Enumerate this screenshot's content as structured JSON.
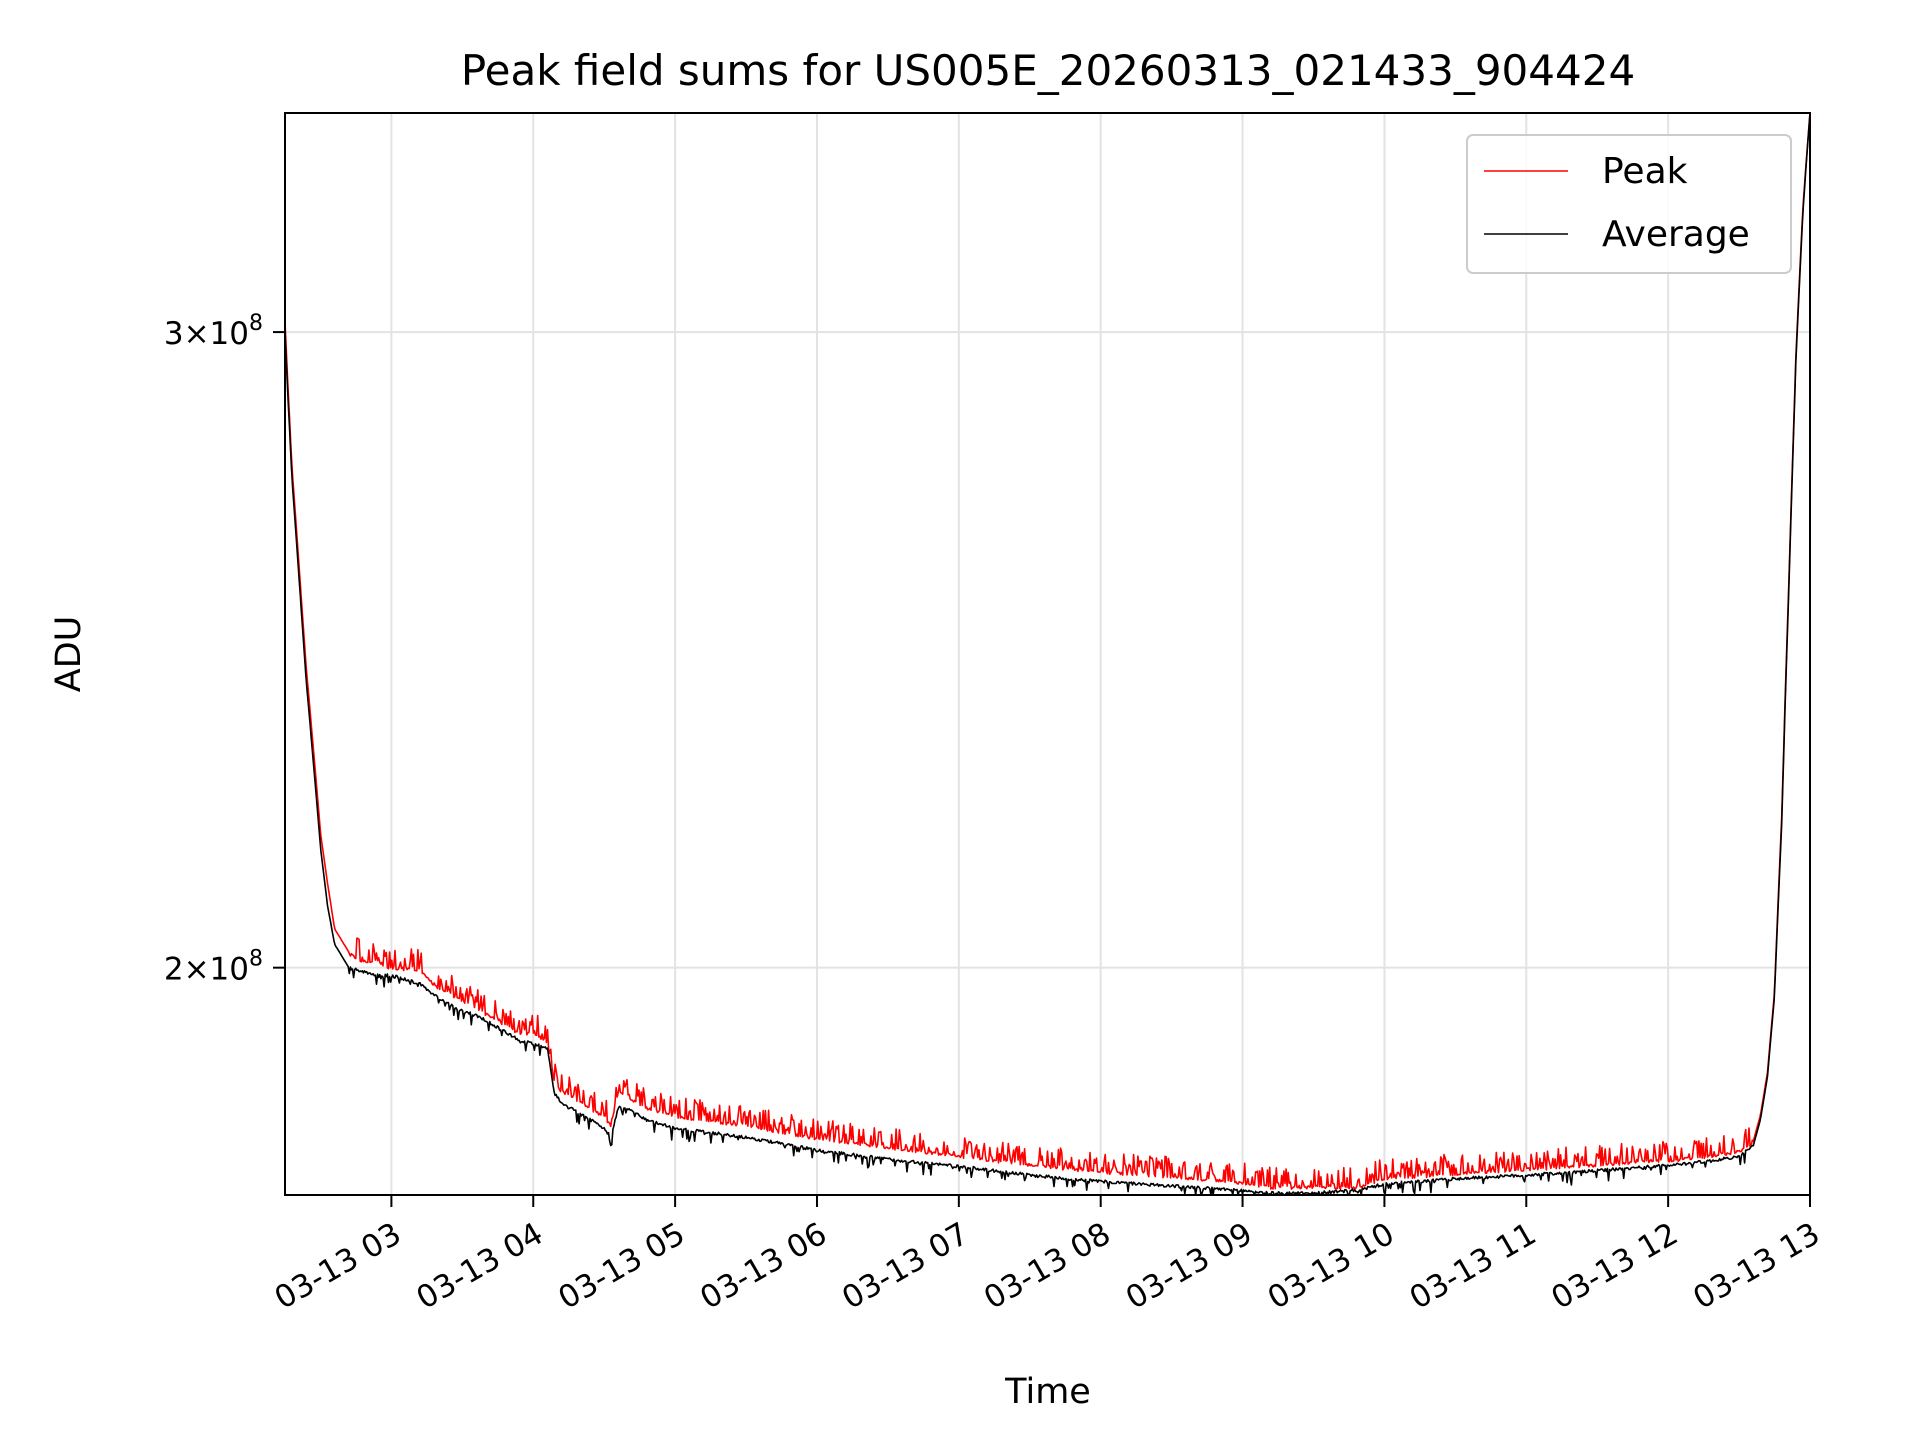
{
  "chart_data": {
    "type": "line",
    "title": "Peak field sums for US005E_20260313_021433_904424",
    "xlabel": "Time",
    "ylabel": "ADU",
    "y_scale": "log",
    "x_range_hours": [
      2.25,
      13.0
    ],
    "ylim": [
      173000000.0,
      345000000.0
    ],
    "x_ticks": [
      {
        "hour": 3,
        "label": "03-13 03"
      },
      {
        "hour": 4,
        "label": "03-13 04"
      },
      {
        "hour": 5,
        "label": "03-13 05"
      },
      {
        "hour": 6,
        "label": "03-13 06"
      },
      {
        "hour": 7,
        "label": "03-13 07"
      },
      {
        "hour": 8,
        "label": "03-13 08"
      },
      {
        "hour": 9,
        "label": "03-13 09"
      },
      {
        "hour": 10,
        "label": "03-13 10"
      },
      {
        "hour": 11,
        "label": "03-13 11"
      },
      {
        "hour": 12,
        "label": "03-13 12"
      },
      {
        "hour": 13,
        "label": "03-13 13"
      }
    ],
    "y_ticks": [
      {
        "value": 200000000.0,
        "mantissa": "2",
        "base": "10",
        "exponent": "8"
      },
      {
        "value": 300000000.0,
        "mantissa": "3",
        "base": "10",
        "exponent": "8"
      }
    ],
    "grid": true,
    "legend_position": "top-right",
    "series": [
      {
        "name": "Peak",
        "color": "#ff0000",
        "x_hours": [
          2.25,
          2.27,
          2.3,
          2.35,
          2.4,
          2.45,
          2.5,
          2.55,
          2.6,
          2.7,
          2.8,
          2.9,
          3.0,
          3.1,
          3.2,
          3.3,
          3.4,
          3.5,
          3.6,
          3.7,
          3.8,
          3.9,
          4.0,
          4.1,
          4.15,
          4.2,
          4.3,
          4.4,
          4.5,
          4.55,
          4.6,
          4.7,
          4.8,
          5.0,
          5.5,
          6.0,
          6.5,
          7.0,
          7.5,
          8.0,
          8.5,
          9.0,
          9.2,
          9.5,
          9.8,
          10.0,
          10.5,
          11.0,
          11.5,
          12.0,
          12.3,
          12.5,
          12.6,
          12.65,
          12.7,
          12.75,
          12.8,
          12.85,
          12.9,
          12.95,
          13.0
        ],
        "values": [
          302000000.0,
          290000000.0,
          275000000.0,
          258000000.0,
          242000000.0,
          230000000.0,
          218000000.0,
          211000000.0,
          205000000.0,
          202000000.0,
          201000000.0,
          201000000.0,
          200000000.0,
          200000000.0,
          200000000.0,
          198000000.0,
          197000000.0,
          196000000.0,
          195000000.0,
          194000000.0,
          193000000.0,
          192000000.0,
          192000000.0,
          191000000.0,
          186000000.0,
          185000000.0,
          184000000.0,
          183000000.0,
          182000000.0,
          181000000.0,
          185000000.0,
          184000000.0,
          183000000.0,
          182000000.0,
          181000000.0,
          179500000.0,
          178500000.0,
          177500000.0,
          176500000.0,
          175700000.0,
          175200000.0,
          174500000.0,
          174000000.0,
          174000000.0,
          174000000.0,
          175000000.0,
          175500000.0,
          176000000.0,
          176500000.0,
          177000000.0,
          177500000.0,
          178000000.0,
          179000000.0,
          182000000.0,
          187000000.0,
          197000000.0,
          220000000.0,
          255000000.0,
          295000000.0,
          325000000.0,
          345000000.0
        ]
      },
      {
        "name": "Average",
        "color": "#000000",
        "x_hours": [
          2.25,
          2.27,
          2.3,
          2.35,
          2.4,
          2.45,
          2.5,
          2.55,
          2.6,
          2.7,
          2.8,
          2.9,
          3.0,
          3.1,
          3.2,
          3.3,
          3.4,
          3.5,
          3.6,
          3.7,
          3.8,
          3.9,
          4.0,
          4.1,
          4.15,
          4.2,
          4.3,
          4.4,
          4.5,
          4.55,
          4.6,
          4.7,
          4.8,
          5.0,
          5.5,
          6.0,
          6.5,
          7.0,
          7.5,
          8.0,
          8.5,
          9.0,
          9.2,
          9.5,
          9.8,
          10.0,
          10.5,
          11.0,
          11.5,
          12.0,
          12.3,
          12.5,
          12.6,
          12.65,
          12.7,
          12.75,
          12.8,
          12.85,
          12.9,
          12.95,
          13.0
        ],
        "values": [
          300000000.0,
          288000000.0,
          273000000.0,
          256000000.0,
          240000000.0,
          228000000.0,
          216000000.0,
          208000000.0,
          203000000.0,
          200000000.0,
          199500000.0,
          199000000.0,
          199000000.0,
          198500000.0,
          198000000.0,
          196500000.0,
          195500000.0,
          194500000.0,
          194000000.0,
          193000000.0,
          192000000.0,
          191000000.0,
          190500000.0,
          190000000.0,
          184500000.0,
          183500000.0,
          182500000.0,
          181500000.0,
          180500000.0,
          179500000.0,
          183000000.0,
          182500000.0,
          181500000.0,
          180500000.0,
          179500000.0,
          178000000.0,
          177000000.0,
          176200000.0,
          175200000.0,
          174500000.0,
          174000000.0,
          173500000.0,
          173200000.0,
          173200000.0,
          173500000.0,
          174200000.0,
          174800000.0,
          175200000.0,
          175700000.0,
          176300000.0,
          176800000.0,
          177300000.0,
          178500000.0,
          181500000.0,
          186500000.0,
          196500000.0,
          219000000.0,
          254000000.0,
          294000000.0,
          324000000.0,
          345000000.0
        ]
      }
    ]
  }
}
